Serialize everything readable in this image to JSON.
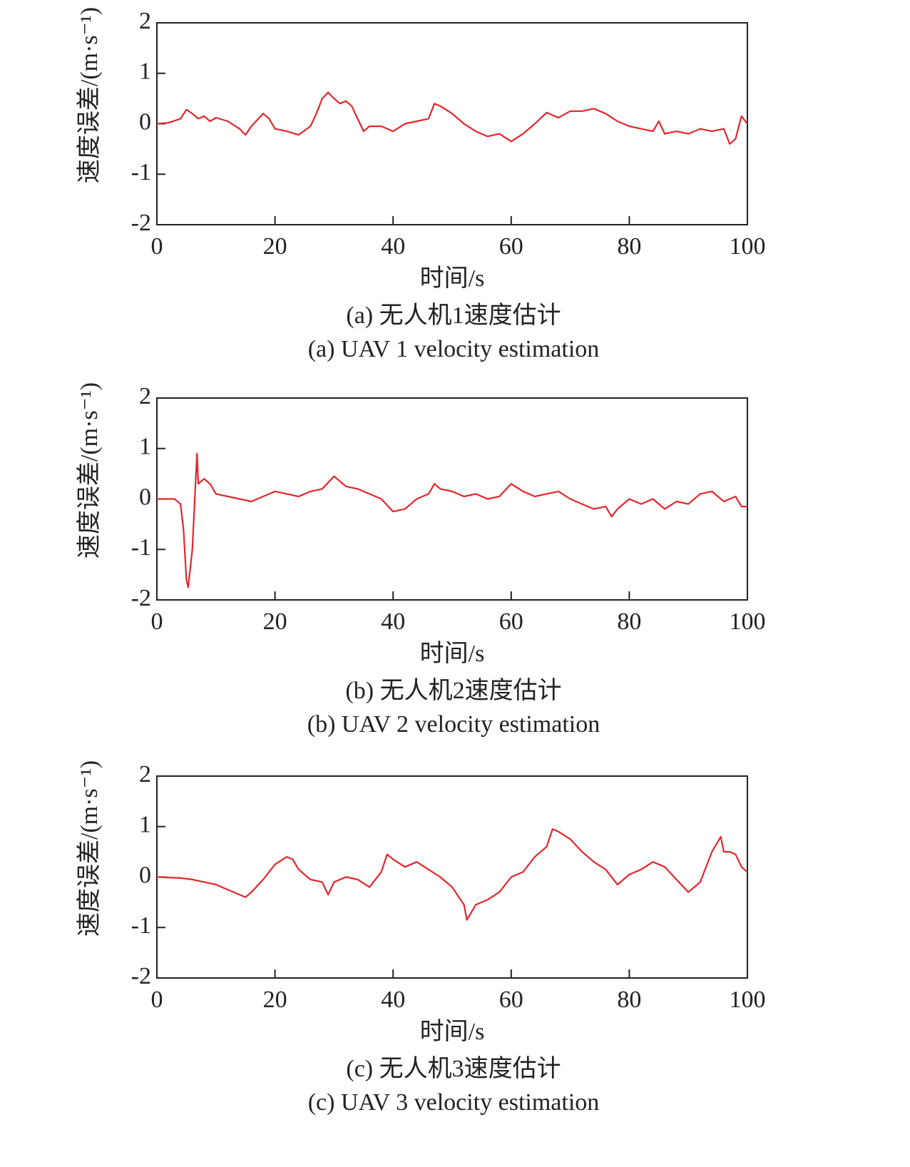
{
  "chart_data": [
    {
      "type": "line",
      "xlabel": "时间/s",
      "ylabel": "速度误差/(m·s⁻¹)",
      "caption": "(a) 无人机1速度估计",
      "caption_en": "(a) UAV 1 velocity estimation",
      "xlim": [
        0,
        100
      ],
      "ylim": [
        -2,
        2
      ],
      "xticks": [
        0,
        20,
        40,
        60,
        80,
        100
      ],
      "yticks": [
        -2,
        -1,
        0,
        1,
        2
      ],
      "x": [
        0,
        2,
        4,
        5,
        6,
        7,
        8,
        9,
        10,
        12,
        14,
        15,
        16,
        18,
        19,
        20,
        22,
        24,
        26,
        27,
        28,
        29,
        30,
        31,
        32,
        33,
        34,
        35,
        36,
        38,
        40,
        42,
        44,
        46,
        47,
        48,
        50,
        52,
        54,
        56,
        58,
        60,
        62,
        64,
        66,
        68,
        70,
        72,
        74,
        76,
        78,
        80,
        82,
        84,
        85,
        86,
        88,
        90,
        92,
        94,
        96,
        97,
        98,
        99,
        100
      ],
      "series": [
        {
          "color": "#e3262b",
          "values": [
            0,
            0.02,
            0.1,
            0.28,
            0.2,
            0.1,
            0.15,
            0.05,
            0.12,
            0.05,
            -0.1,
            -0.22,
            -0.05,
            0.2,
            0.1,
            -0.1,
            -0.15,
            -0.22,
            -0.05,
            0.2,
            0.5,
            0.62,
            0.5,
            0.4,
            0.45,
            0.35,
            0.1,
            -0.15,
            -0.05,
            -0.05,
            -0.15,
            0,
            0.05,
            0.1,
            0.4,
            0.35,
            0.2,
            0,
            -0.15,
            -0.25,
            -0.2,
            -0.35,
            -0.2,
            0,
            0.22,
            0.12,
            0.25,
            0.25,
            0.3,
            0.2,
            0.05,
            -0.05,
            -0.1,
            -0.15,
            0.05,
            -0.2,
            -0.15,
            -0.2,
            -0.1,
            -0.15,
            -0.1,
            -0.4,
            -0.3,
            0.15,
            0
          ]
        }
      ]
    },
    {
      "type": "line",
      "xlabel": "时间/s",
      "ylabel": "速度误差/(m·s⁻¹)",
      "caption": "(b) 无人机2速度估计",
      "caption_en": "(b) UAV 2 velocity estimation",
      "xlim": [
        0,
        100
      ],
      "ylim": [
        -2,
        2
      ],
      "xticks": [
        0,
        20,
        40,
        60,
        80,
        100
      ],
      "yticks": [
        -2,
        -1,
        0,
        1,
        2
      ],
      "x": [
        0,
        3,
        4,
        4.5,
        5,
        5.3,
        6,
        6.5,
        6.8,
        7,
        8,
        9,
        10,
        12,
        14,
        16,
        18,
        20,
        22,
        24,
        26,
        28,
        30,
        32,
        34,
        36,
        38,
        40,
        42,
        44,
        46,
        47,
        48,
        50,
        52,
        54,
        56,
        58,
        60,
        62,
        64,
        66,
        68,
        70,
        72,
        74,
        76,
        77,
        78,
        80,
        82,
        84,
        86,
        88,
        90,
        92,
        94,
        96,
        98,
        99,
        100
      ],
      "series": [
        {
          "color": "#e3262b",
          "values": [
            0,
            0,
            -0.1,
            -0.6,
            -1.6,
            -1.75,
            -1,
            0.2,
            0.9,
            0.3,
            0.4,
            0.3,
            0.1,
            0.05,
            0,
            -0.05,
            0.05,
            0.15,
            0.1,
            0.05,
            0.15,
            0.2,
            0.45,
            0.25,
            0.2,
            0.1,
            0,
            -0.25,
            -0.2,
            0,
            0.1,
            0.3,
            0.2,
            0.15,
            0.05,
            0.1,
            0,
            0.05,
            0.3,
            0.15,
            0.05,
            0.1,
            0.15,
            0,
            -0.1,
            -0.2,
            -0.15,
            -0.35,
            -0.2,
            0,
            -0.1,
            0,
            -0.2,
            -0.05,
            -0.1,
            0.1,
            0.15,
            -0.05,
            0.05,
            -0.15,
            -0.15
          ]
        }
      ]
    },
    {
      "type": "line",
      "xlabel": "时间/s",
      "ylabel": "速度误差/(m·s⁻¹)",
      "caption": "(c) 无人机3速度估计",
      "caption_en": "(c) UAV 3 velocity estimation",
      "xlim": [
        0,
        100
      ],
      "ylim": [
        -2,
        2
      ],
      "xticks": [
        0,
        20,
        40,
        60,
        80,
        100
      ],
      "yticks": [
        -2,
        -1,
        0,
        1,
        2
      ],
      "x": [
        0,
        4,
        6,
        8,
        10,
        12,
        14,
        15,
        16,
        18,
        20,
        22,
        23,
        24,
        26,
        28,
        29,
        30,
        32,
        34,
        36,
        38,
        39,
        40,
        42,
        44,
        46,
        48,
        50,
        52,
        52.5,
        54,
        56,
        58,
        60,
        62,
        64,
        66,
        67,
        68,
        70,
        72,
        74,
        76,
        78,
        80,
        82,
        84,
        86,
        88,
        90,
        92,
        94,
        95.5,
        96,
        97,
        98,
        99,
        100
      ],
      "series": [
        {
          "color": "#e3262b",
          "values": [
            0,
            -0.02,
            -0.05,
            -0.1,
            -0.15,
            -0.25,
            -0.35,
            -0.4,
            -0.3,
            -0.05,
            0.25,
            0.4,
            0.35,
            0.15,
            -0.05,
            -0.1,
            -0.35,
            -0.1,
            0,
            -0.05,
            -0.2,
            0.1,
            0.45,
            0.35,
            0.2,
            0.3,
            0.15,
            0,
            -0.2,
            -0.55,
            -0.85,
            -0.55,
            -0.45,
            -0.3,
            0,
            0.1,
            0.4,
            0.6,
            0.95,
            0.9,
            0.75,
            0.5,
            0.3,
            0.15,
            -0.15,
            0.05,
            0.15,
            0.3,
            0.2,
            -0.05,
            -0.3,
            -0.1,
            0.5,
            0.8,
            0.5,
            0.5,
            0.45,
            0.2,
            0.1
          ]
        }
      ]
    }
  ]
}
